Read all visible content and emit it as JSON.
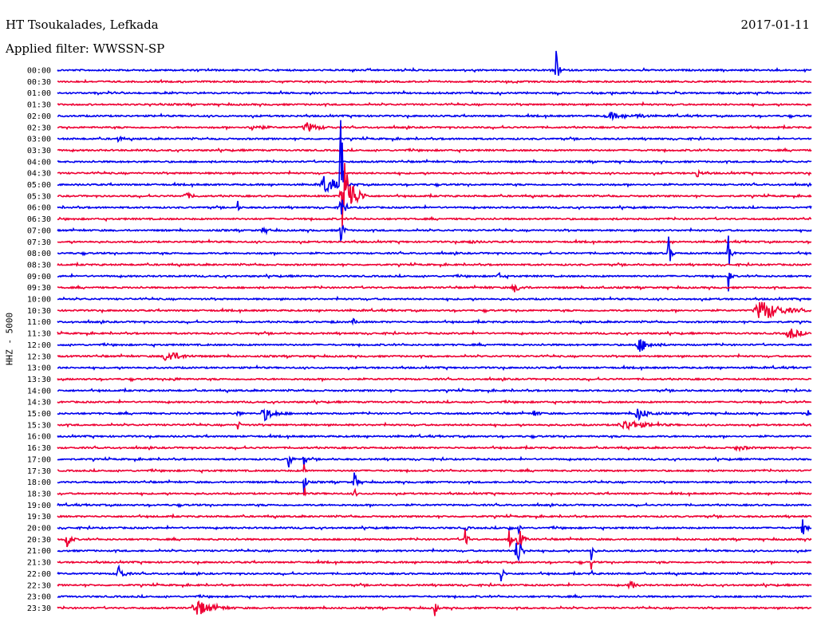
{
  "header": {
    "station": "HT Tsoukalades, Lefkada",
    "date": "2017-01-11",
    "filter": "Applied filter: WWSSN-SP"
  },
  "axis_label": "HHZ - 5000",
  "colors": {
    "blue": "#0000ee",
    "red": "#ee0033"
  },
  "chart_data": {
    "type": "line",
    "title": "HT Tsoukalades, Lefkada",
    "ylabel": "HHZ - 5000",
    "rows": [
      {
        "label": "00:00",
        "color": "blue",
        "events": [
          [
            697,
            24,
            4,
            0.004
          ]
        ]
      },
      {
        "label": "00:30",
        "color": "red",
        "events": []
      },
      {
        "label": "01:00",
        "color": "blue",
        "events": []
      },
      {
        "label": "01:30",
        "color": "red",
        "events": []
      },
      {
        "label": "02:00",
        "color": "blue",
        "events": [
          [
            765,
            4,
            20,
            0.01
          ],
          [
            800,
            3,
            10,
            0.01
          ]
        ]
      },
      {
        "label": "02:30",
        "color": "red",
        "events": [
          [
            317,
            4,
            14,
            0.01
          ],
          [
            385,
            6,
            18,
            0.008
          ]
        ]
      },
      {
        "label": "03:00",
        "color": "blue",
        "events": [
          [
            148,
            6,
            4,
            0.004
          ]
        ]
      },
      {
        "label": "03:30",
        "color": "red",
        "events": []
      },
      {
        "label": "04:00",
        "color": "blue",
        "events": []
      },
      {
        "label": "04:30",
        "color": "red",
        "events": [
          [
            873,
            6,
            6,
            0.006
          ]
        ]
      },
      {
        "label": "05:00",
        "color": "blue",
        "events": [
          [
            408,
            12,
            20,
            0.005
          ],
          [
            427,
            120,
            4,
            0.003
          ]
        ]
      },
      {
        "label": "05:30",
        "color": "red",
        "events": [
          [
            431,
            60,
            14,
            0.004
          ],
          [
            233,
            4,
            10,
            0.01
          ]
        ]
      },
      {
        "label": "06:00",
        "color": "blue",
        "events": [
          [
            298,
            8,
            2,
            0.004
          ],
          [
            427,
            30,
            5,
            0.004
          ]
        ]
      },
      {
        "label": "06:30",
        "color": "red",
        "events": []
      },
      {
        "label": "07:00",
        "color": "blue",
        "events": [
          [
            427,
            22,
            4,
            0.004
          ],
          [
            330,
            3,
            10,
            0.01
          ]
        ]
      },
      {
        "label": "07:30",
        "color": "red",
        "events": [
          [
            590,
            2,
            10,
            0.01
          ]
        ]
      },
      {
        "label": "08:00",
        "color": "blue",
        "events": [
          [
            838,
            22,
            4,
            0.004
          ],
          [
            913,
            30,
            4,
            0.004
          ]
        ]
      },
      {
        "label": "08:30",
        "color": "red",
        "events": []
      },
      {
        "label": "09:00",
        "color": "blue",
        "events": [
          [
            913,
            20,
            3,
            0.004
          ],
          [
            625,
            4,
            6,
            0.01
          ]
        ]
      },
      {
        "label": "09:30",
        "color": "red",
        "events": [
          [
            645,
            5,
            12,
            0.008
          ],
          [
            612,
            3,
            3,
            0.01
          ],
          [
            755,
            3,
            3,
            0.01
          ]
        ]
      },
      {
        "label": "10:00",
        "color": "blue",
        "events": []
      },
      {
        "label": "10:30",
        "color": "red",
        "events": [
          [
            955,
            14,
            30,
            0.006
          ]
        ]
      },
      {
        "label": "11:00",
        "color": "blue",
        "events": [
          [
            443,
            3,
            6,
            0.01
          ],
          [
            415,
            2,
            4,
            0.01
          ]
        ]
      },
      {
        "label": "11:30",
        "color": "red",
        "events": [
          [
            990,
            7,
            16,
            0.008
          ]
        ]
      },
      {
        "label": "12:00",
        "color": "blue",
        "events": [
          [
            802,
            9,
            16,
            0.006
          ]
        ]
      },
      {
        "label": "12:30",
        "color": "red",
        "events": [
          [
            210,
            8,
            20,
            0.008
          ]
        ]
      },
      {
        "label": "13:00",
        "color": "blue",
        "events": []
      },
      {
        "label": "13:30",
        "color": "red",
        "events": [
          [
            215,
            2,
            10,
            0.01
          ]
        ]
      },
      {
        "label": "14:00",
        "color": "blue",
        "events": []
      },
      {
        "label": "14:30",
        "color": "red",
        "events": []
      },
      {
        "label": "15:00",
        "color": "blue",
        "events": [
          [
            332,
            8,
            16,
            0.008
          ],
          [
            800,
            8,
            16,
            0.008
          ],
          [
            670,
            5,
            6,
            0.01
          ],
          [
            1013,
            4,
            8,
            0.01
          ],
          [
            298,
            4,
            4,
            0.008
          ]
        ]
      },
      {
        "label": "15:30",
        "color": "red",
        "events": [
          [
            785,
            6,
            30,
            0.006
          ],
          [
            298,
            6,
            4,
            0.006
          ]
        ]
      },
      {
        "label": "16:00",
        "color": "blue",
        "events": []
      },
      {
        "label": "16:30",
        "color": "red",
        "events": [
          [
            925,
            3,
            14,
            0.01
          ]
        ]
      },
      {
        "label": "17:00",
        "color": "blue",
        "events": [
          [
            362,
            16,
            4,
            0.004
          ],
          [
            381,
            12,
            3,
            0.004
          ]
        ]
      },
      {
        "label": "17:30",
        "color": "red",
        "events": [
          [
            381,
            10,
            2,
            0.004
          ]
        ]
      },
      {
        "label": "18:00",
        "color": "blue",
        "events": [
          [
            444,
            16,
            4,
            0.004
          ],
          [
            381,
            18,
            3,
            0.004
          ]
        ]
      },
      {
        "label": "18:30",
        "color": "red",
        "events": [
          [
            381,
            12,
            2,
            0.004
          ],
          [
            444,
            8,
            3,
            0.004
          ]
        ]
      },
      {
        "label": "19:00",
        "color": "blue",
        "events": []
      },
      {
        "label": "19:30",
        "color": "red",
        "events": []
      },
      {
        "label": "20:00",
        "color": "blue",
        "events": [
          [
            1006,
            16,
            4,
            0.004
          ],
          [
            583,
            6,
            3,
            0.004
          ],
          [
            638,
            5,
            3,
            0.004
          ],
          [
            650,
            6,
            3,
            0.004
          ]
        ]
      },
      {
        "label": "20:30",
        "color": "red",
        "events": [
          [
            83,
            14,
            6,
            0.006
          ],
          [
            583,
            16,
            4,
            0.004
          ],
          [
            638,
            14,
            4,
            0.004
          ],
          [
            650,
            18,
            6,
            0.004
          ]
        ]
      },
      {
        "label": "21:00",
        "color": "blue",
        "events": [
          [
            648,
            14,
            8,
            0.005
          ],
          [
            741,
            20,
            3,
            0.004
          ],
          [
            650,
            8,
            4,
            0.005
          ]
        ]
      },
      {
        "label": "21:30",
        "color": "red",
        "events": [
          [
            741,
            10,
            2,
            0.004
          ]
        ]
      },
      {
        "label": "22:00",
        "color": "blue",
        "events": [
          [
            148,
            12,
            8,
            0.006
          ],
          [
            628,
            12,
            4,
            0.006
          ],
          [
            741,
            6,
            2,
            0.005
          ]
        ]
      },
      {
        "label": "22:30",
        "color": "red",
        "events": [
          [
            790,
            6,
            8,
            0.008
          ]
        ]
      },
      {
        "label": "23:00",
        "color": "blue",
        "events": []
      },
      {
        "label": "23:30",
        "color": "red",
        "events": [
          [
            248,
            10,
            24,
            0.006
          ],
          [
            545,
            14,
            3,
            0.004
          ]
        ]
      }
    ]
  }
}
